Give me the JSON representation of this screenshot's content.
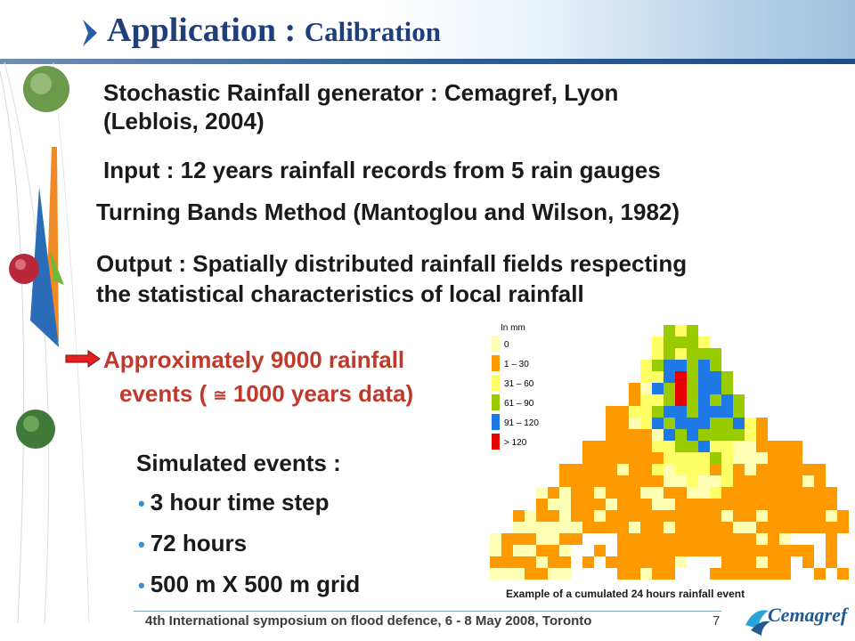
{
  "slide": {
    "title_main": "Application : ",
    "title_sub": "Calibration",
    "lines": {
      "generator_1": "Stochastic Rainfall generator : Cemagref, Lyon",
      "generator_2": "(Leblois, 2004)",
      "input": "Input : 12 years rainfall records from 5 rain gauges",
      "turning": "Turning Bands Method (Mantoglou and Wilson, 1982)",
      "output_1": "Output : Spatially distributed rainfall fields respecting",
      "output_2": "the statistical characteristics of  local rainfall"
    },
    "approx": {
      "line_1": "Approximately 9000 rainfall",
      "line_2_pre": "events ( ",
      "symbol": "≅",
      "line_2_post": " 1000 years data)"
    },
    "simulated": {
      "title": "Simulated events :",
      "bullets": [
        "3 hour time step",
        "72 hours",
        "500 m X 500 m grid"
      ]
    }
  },
  "map": {
    "legend_title": "In mm",
    "legend": [
      {
        "label": "0",
        "color": "#ffffb3"
      },
      {
        "label": "1 – 30",
        "color": "#ff9900"
      },
      {
        "label": "31 – 60",
        "color": "#ffff66"
      },
      {
        "label": "61 – 90",
        "color": "#99cc00"
      },
      {
        "label": "91 – 120",
        "color": "#1e78e6"
      },
      {
        "label": "> 120",
        "color": "#e60000"
      }
    ],
    "caption": "Example of a cumulated 24 hours rainfall event"
  },
  "footer": {
    "text": "4th International symposium on flood defence, 6 - 8 May 2008, Toronto",
    "page": "7",
    "logo": "Cemagref"
  },
  "colors": {
    "title": "#1f3f7a",
    "header_rule": "#2c5f9a",
    "emphasis": "#c0392b",
    "bullet": "#3a8fd0"
  }
}
